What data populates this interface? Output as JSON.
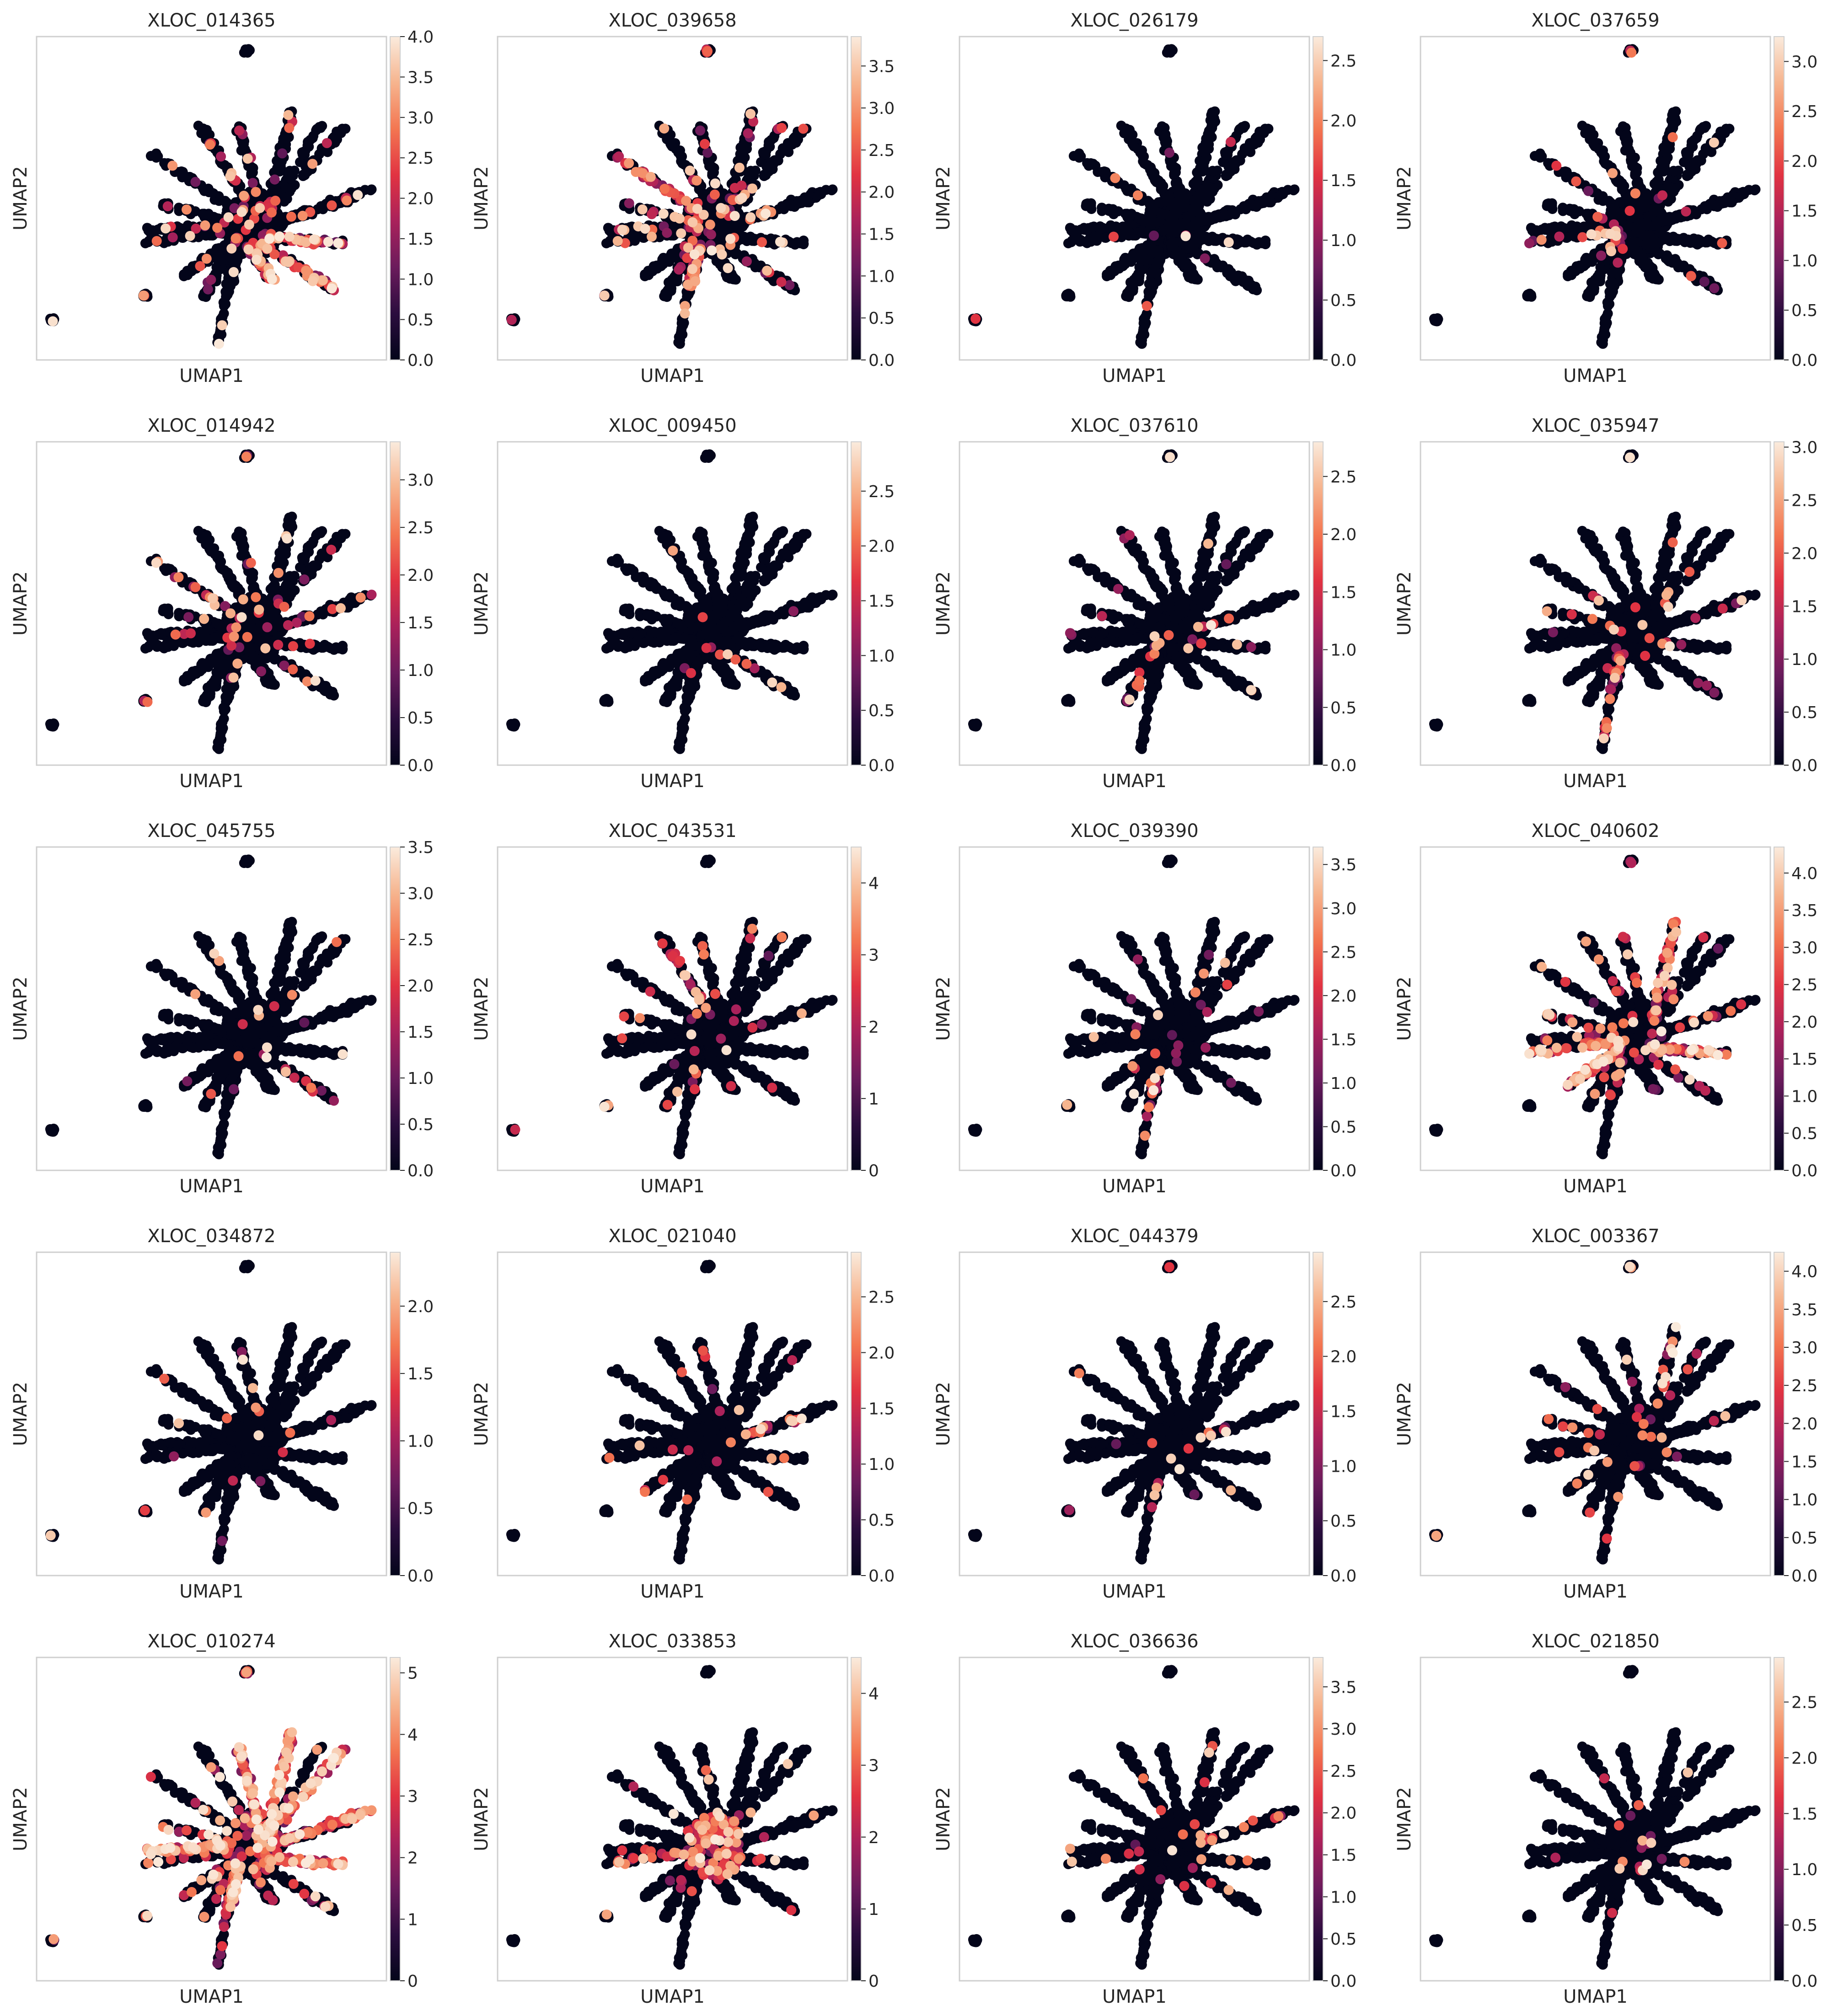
{
  "figure": {
    "x_label": "UMAP1",
    "y_label": "UMAP2",
    "colormap_stops": [
      "#03051a",
      "#2b0d3e",
      "#6b1b5c",
      "#a9215b",
      "#e13342",
      "#f37651",
      "#f6b48e",
      "#faebdd"
    ]
  },
  "chart_data": [
    {
      "type": "scatter",
      "title": "XLOC_014365",
      "xlabel": "UMAP1",
      "ylabel": "UMAP2",
      "colorbar_range": [
        0,
        4.0
      ],
      "colorbar_ticks": [
        "0.0",
        "0.5",
        "1.0",
        "1.5",
        "2.0",
        "2.5",
        "3.0",
        "3.5",
        "4.0"
      ],
      "expression_seed": 11,
      "expression_level": 0.3
    },
    {
      "type": "scatter",
      "title": "XLOC_039658",
      "xlabel": "UMAP1",
      "ylabel": "UMAP2",
      "colorbar_range": [
        0,
        3.85
      ],
      "colorbar_ticks": [
        "0.0",
        "0.5",
        "1.0",
        "1.5",
        "2.0",
        "2.5",
        "3.0",
        "3.5"
      ],
      "expression_seed": 23,
      "expression_level": 0.28
    },
    {
      "type": "scatter",
      "title": "XLOC_026179",
      "xlabel": "UMAP1",
      "ylabel": "UMAP2",
      "colorbar_range": [
        0,
        2.7
      ],
      "colorbar_ticks": [
        "0.0",
        "0.5",
        "1.0",
        "1.5",
        "2.0",
        "2.5"
      ],
      "expression_seed": 37,
      "expression_level": 0.03
    },
    {
      "type": "scatter",
      "title": "XLOC_037659",
      "xlabel": "UMAP1",
      "ylabel": "UMAP2",
      "colorbar_range": [
        0,
        3.25
      ],
      "colorbar_ticks": [
        "0.0",
        "0.5",
        "1.0",
        "1.5",
        "2.0",
        "2.5",
        "3.0"
      ],
      "expression_seed": 41,
      "expression_level": 0.12
    },
    {
      "type": "scatter",
      "title": "XLOC_014942",
      "xlabel": "UMAP1",
      "ylabel": "UMAP2",
      "colorbar_range": [
        0,
        3.4
      ],
      "colorbar_ticks": [
        "0.0",
        "0.5",
        "1.0",
        "1.5",
        "2.0",
        "2.5",
        "3.0"
      ],
      "expression_seed": 53,
      "expression_level": 0.12
    },
    {
      "type": "scatter",
      "title": "XLOC_009450",
      "xlabel": "UMAP1",
      "ylabel": "UMAP2",
      "colorbar_range": [
        0,
        2.95
      ],
      "colorbar_ticks": [
        "0.0",
        "0.5",
        "1.0",
        "1.5",
        "2.0",
        "2.5"
      ],
      "expression_seed": 61,
      "expression_level": 0.04
    },
    {
      "type": "scatter",
      "title": "XLOC_037610",
      "xlabel": "UMAP1",
      "ylabel": "UMAP2",
      "colorbar_range": [
        0,
        2.8
      ],
      "colorbar_ticks": [
        "0.0",
        "0.5",
        "1.0",
        "1.5",
        "2.0",
        "2.5"
      ],
      "expression_seed": 73,
      "expression_level": 0.08
    },
    {
      "type": "scatter",
      "title": "XLOC_035947",
      "xlabel": "UMAP1",
      "ylabel": "UMAP2",
      "colorbar_range": [
        0,
        3.05
      ],
      "colorbar_ticks": [
        "0.0",
        "0.5",
        "1.0",
        "1.5",
        "2.0",
        "2.5",
        "3.0"
      ],
      "expression_seed": 83,
      "expression_level": 0.12
    },
    {
      "type": "scatter",
      "title": "XLOC_045755",
      "xlabel": "UMAP1",
      "ylabel": "UMAP2",
      "colorbar_range": [
        0,
        3.5
      ],
      "colorbar_ticks": [
        "0.0",
        "0.5",
        "1.0",
        "1.5",
        "2.0",
        "2.5",
        "3.0",
        "3.5"
      ],
      "expression_seed": 97,
      "expression_level": 0.05
    },
    {
      "type": "scatter",
      "title": "XLOC_043531",
      "xlabel": "UMAP1",
      "ylabel": "UMAP2",
      "colorbar_range": [
        0,
        4.5
      ],
      "colorbar_ticks": [
        "0",
        "1",
        "2",
        "3",
        "4"
      ],
      "expression_seed": 101,
      "expression_level": 0.12
    },
    {
      "type": "scatter",
      "title": "XLOC_039390",
      "xlabel": "UMAP1",
      "ylabel": "UMAP2",
      "colorbar_range": [
        0,
        3.7
      ],
      "colorbar_ticks": [
        "0.0",
        "0.5",
        "1.0",
        "1.5",
        "2.0",
        "2.5",
        "3.0",
        "3.5"
      ],
      "expression_seed": 113,
      "expression_level": 0.1
    },
    {
      "type": "scatter",
      "title": "XLOC_040602",
      "xlabel": "UMAP1",
      "ylabel": "UMAP2",
      "colorbar_range": [
        0,
        4.35
      ],
      "colorbar_ticks": [
        "0.0",
        "0.5",
        "1.0",
        "1.5",
        "2.0",
        "2.5",
        "3.0",
        "3.5",
        "4.0"
      ],
      "expression_seed": 127,
      "expression_level": 0.3
    },
    {
      "type": "scatter",
      "title": "XLOC_034872",
      "xlabel": "UMAP1",
      "ylabel": "UMAP2",
      "colorbar_range": [
        0,
        2.4
      ],
      "colorbar_ticks": [
        "0.0",
        "0.5",
        "1.0",
        "1.5",
        "2.0"
      ],
      "expression_seed": 131,
      "expression_level": 0.04
    },
    {
      "type": "scatter",
      "title": "XLOC_021040",
      "xlabel": "UMAP1",
      "ylabel": "UMAP2",
      "colorbar_range": [
        0,
        2.9
      ],
      "colorbar_ticks": [
        "0.0",
        "0.5",
        "1.0",
        "1.5",
        "2.0",
        "2.5"
      ],
      "expression_seed": 139,
      "expression_level": 0.1
    },
    {
      "type": "scatter",
      "title": "XLOC_044379",
      "xlabel": "UMAP1",
      "ylabel": "UMAP2",
      "colorbar_range": [
        0,
        2.95
      ],
      "colorbar_ticks": [
        "0.0",
        "0.5",
        "1.0",
        "1.5",
        "2.0",
        "2.5"
      ],
      "expression_seed": 149,
      "expression_level": 0.04
    },
    {
      "type": "scatter",
      "title": "XLOC_003367",
      "xlabel": "UMAP1",
      "ylabel": "UMAP2",
      "colorbar_range": [
        0,
        4.25
      ],
      "colorbar_ticks": [
        "0.0",
        "0.5",
        "1.0",
        "1.5",
        "2.0",
        "2.5",
        "3.0",
        "3.5",
        "4.0"
      ],
      "expression_seed": 157,
      "expression_level": 0.08
    },
    {
      "type": "scatter",
      "title": "XLOC_010274",
      "xlabel": "UMAP1",
      "ylabel": "UMAP2",
      "colorbar_range": [
        0,
        5.25
      ],
      "colorbar_ticks": [
        "0",
        "1",
        "2",
        "3",
        "4",
        "5"
      ],
      "expression_seed": 163,
      "expression_level": 0.55
    },
    {
      "type": "scatter",
      "title": "XLOC_033853",
      "xlabel": "UMAP1",
      "ylabel": "UMAP2",
      "colorbar_range": [
        0,
        4.5
      ],
      "colorbar_ticks": [
        "0",
        "1",
        "2",
        "3",
        "4"
      ],
      "expression_seed": 173,
      "expression_level": 0.18
    },
    {
      "type": "scatter",
      "title": "XLOC_036636",
      "xlabel": "UMAP1",
      "ylabel": "UMAP2",
      "colorbar_range": [
        0,
        3.85
      ],
      "colorbar_ticks": [
        "0.0",
        "0.5",
        "1.0",
        "1.5",
        "2.0",
        "2.5",
        "3.0",
        "3.5"
      ],
      "expression_seed": 181,
      "expression_level": 0.07
    },
    {
      "type": "scatter",
      "title": "XLOC_021850",
      "xlabel": "UMAP1",
      "ylabel": "UMAP2",
      "colorbar_range": [
        0,
        2.9
      ],
      "colorbar_ticks": [
        "0.0",
        "0.5",
        "1.0",
        "1.5",
        "2.0",
        "2.5"
      ],
      "expression_seed": 191,
      "expression_level": 0.03
    }
  ]
}
